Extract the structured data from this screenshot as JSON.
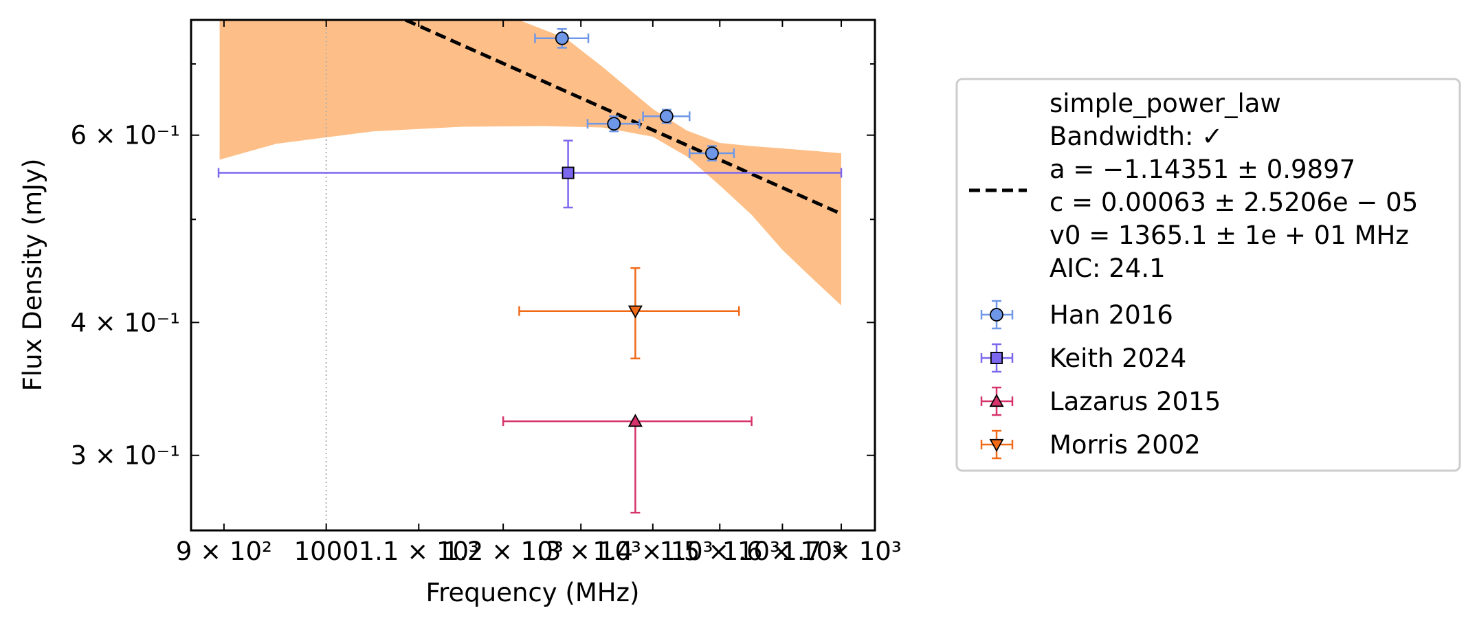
{
  "chart_data": {
    "type": "scatter",
    "xlabel": "Frequency (MHz)",
    "ylabel": "Flux Density (mJy)",
    "x_scale": "log",
    "y_scale": "log",
    "xlim": [
      870,
      1760
    ],
    "ylim": [
      0.255,
      0.77
    ],
    "x_ticks": [
      {
        "value": 900,
        "label": "9 × 10²"
      },
      {
        "value": 1000,
        "label": "1000"
      },
      {
        "value": 1100,
        "label": "1.1 × 10³"
      },
      {
        "value": 1200,
        "label": "1.2 × 10³"
      },
      {
        "value": 1300,
        "label": "1.3 × 10³"
      },
      {
        "value": 1400,
        "label": "1.4 × 10³"
      },
      {
        "value": 1500,
        "label": "1.5 × 10³"
      },
      {
        "value": 1600,
        "label": "1.6 × 10³"
      },
      {
        "value": 1700,
        "label": "1.7 × 10³"
      }
    ],
    "y_ticks": [
      {
        "value": 0.3,
        "label": "3 × 10⁻¹"
      },
      {
        "value": 0.4,
        "label": "4 × 10⁻¹"
      },
      {
        "value": 0.6,
        "label": "6 × 10⁻¹"
      }
    ],
    "y_minor_ticks": [
      0.5,
      0.7
    ],
    "reference_line_x": 1000,
    "fit": {
      "label_lines": [
        "simple_power_law",
        "Bandwidth: ✓",
        "a = −1.14351 ± 0.9897",
        "c = 0.00063 ± 2.5206e − 05",
        "v0 = 1365.1 ± 1e + 01 MHz",
        "AIC: 24.1"
      ],
      "color": "#000000",
      "band_color": "#fdbf87",
      "line": {
        "x": [
          1085,
          1700
        ],
        "y": [
          0.77,
          0.506
        ]
      },
      "band_upper": {
        "x": [
          896,
          1085,
          1200,
          1280,
          1330,
          1400,
          1450,
          1500,
          1550,
          1600,
          1650,
          1700
        ],
        "y": [
          0.78,
          0.78,
          0.78,
          0.74,
          0.695,
          0.635,
          0.606,
          0.59,
          0.586,
          0.583,
          0.58,
          0.577
        ]
      },
      "band_lower": {
        "x": [
          896,
          950,
          1050,
          1150,
          1250,
          1330,
          1400,
          1450,
          1500,
          1550,
          1600,
          1650,
          1700
        ],
        "y": [
          0.569,
          0.589,
          0.605,
          0.611,
          0.612,
          0.61,
          0.598,
          0.573,
          0.538,
          0.505,
          0.468,
          0.44,
          0.415
        ]
      }
    },
    "series": [
      {
        "name": "Han 2016",
        "marker": "circle",
        "color": "#6f97e8",
        "points": [
          {
            "x": 1275,
            "y": 0.74,
            "xerr": 35,
            "yerr": 0.015
          },
          {
            "x": 1345,
            "y": 0.615,
            "xerr": 36,
            "yerr": 0.01
          },
          {
            "x": 1420,
            "y": 0.625,
            "xerr": 34,
            "yerr": 0.009
          },
          {
            "x": 1488,
            "y": 0.577,
            "xerr": 34,
            "yerr": 0.009
          }
        ]
      },
      {
        "name": "Keith 2024",
        "marker": "square",
        "color": "#7b68ee",
        "points": [
          {
            "x": 1283,
            "y": 0.553,
            "xerr_low": 388,
            "xerr_high": 417,
            "yerr": 0.04
          }
        ]
      },
      {
        "name": "Lazarus 2015",
        "marker": "triangle-up",
        "color": "#d6336c",
        "points": [
          {
            "x": 1375,
            "y": 0.323,
            "xerr": 175,
            "yerr_low": 0.058,
            "yerr_high": 0.0
          }
        ]
      },
      {
        "name": "Morris 2002",
        "marker": "triangle-down",
        "color": "#f06a18",
        "points": [
          {
            "x": 1375,
            "y": 0.41,
            "xerr_low": 155,
            "xerr_high": 155,
            "yerr": 0.04
          }
        ]
      }
    ],
    "legend_position": "outside-right"
  }
}
